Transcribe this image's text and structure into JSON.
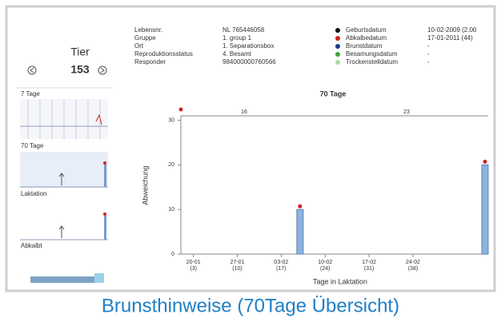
{
  "animal": {
    "label": "Tier",
    "number": "153"
  },
  "info": {
    "labels": [
      "Lebensnr.",
      "Gruppe",
      "Ort",
      "Reproduktionsstatus",
      "Responder"
    ],
    "values": [
      "NL 765446058",
      "1. group 1",
      "1. Separationsbox",
      "4. Besamt",
      "984000000760566"
    ]
  },
  "legend": {
    "names": [
      "Geburtsdatum",
      "Abkalbedatum",
      "Brunstdatum",
      "Besamungsdatum",
      "Trockenstelldatum"
    ],
    "colors": [
      "#111111",
      "#d42020",
      "#1a3a8a",
      "#3aa63a",
      "#a8d8a0"
    ],
    "values": [
      "10-02-2009 (2.00",
      "17-01-2011 (44)",
      "-",
      "-",
      "-"
    ]
  },
  "panels": [
    "7 Tage",
    "70 Tage",
    "Laktation",
    "Abkalbt"
  ],
  "chart_data": {
    "type": "bar",
    "title": "70 Tage",
    "y_label": "Abweichung",
    "x_label": "Tage in Laktation",
    "top_labels": [
      "16",
      "23"
    ],
    "x": [
      20,
      50
    ],
    "values": [
      10,
      20
    ],
    "color": "#8fb3de",
    "xlim": [
      1,
      50
    ],
    "xticks": [
      {
        "value": 3,
        "label": "20-01"
      },
      {
        "value": 10,
        "label": "27-01"
      },
      {
        "value": 17,
        "label": "03-02"
      },
      {
        "value": 24,
        "label": "10-02"
      },
      {
        "value": 31,
        "label": "17-02"
      },
      {
        "value": 38,
        "label": "24-02"
      }
    ],
    "xtick_days": [
      "(3)",
      "(10)",
      "(17)",
      "(24)",
      "(31)",
      "(38)"
    ],
    "ylim": [
      0,
      31
    ],
    "yticks": [
      0,
      10,
      20,
      30
    ]
  },
  "caption": "Brunsthinweise (70Tage Übersicht)"
}
